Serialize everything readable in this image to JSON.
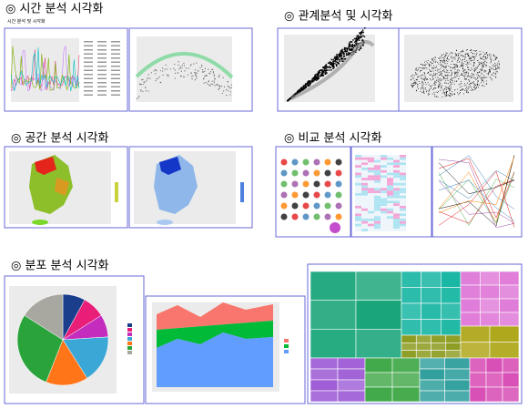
{
  "sections": [
    {
      "title": "◎ 시간 분석 시각화"
    },
    {
      "title": "◎ 관계분석 및 시각화"
    },
    {
      "title": "◎ 공간 분석 시각화"
    },
    {
      "title": "◎ 비교 분석 시각화"
    },
    {
      "title": "◎ 분포 분석 시각화"
    }
  ],
  "panel_subtitle": "시간 분석 및 시각화"
}
